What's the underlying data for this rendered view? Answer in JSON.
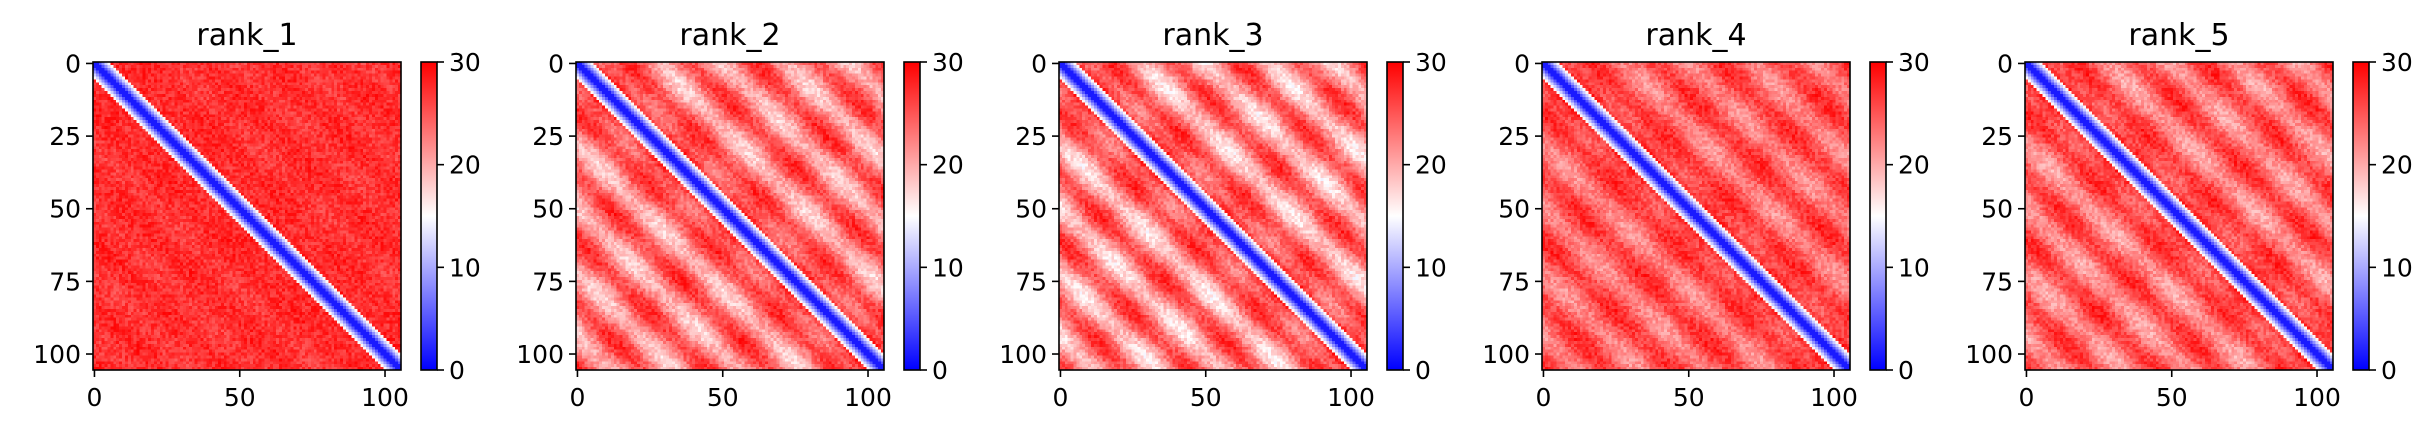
{
  "chart_data": [
    {
      "type": "heatmap",
      "title": "rank_1",
      "matrix_size": 106,
      "x_ticks": [
        0,
        50,
        100
      ],
      "y_ticks": [
        0,
        25,
        50,
        75,
        100
      ],
      "colorbar": {
        "min": 0,
        "max": 30,
        "ticks": [
          0,
          10,
          20,
          30
        ],
        "colors": [
          "#0000ff",
          "#ffffff",
          "#ff0000"
        ]
      },
      "band_strength": 0.15,
      "diagonal_width": 6
    },
    {
      "type": "heatmap",
      "title": "rank_2",
      "matrix_size": 106,
      "x_ticks": [
        0,
        50,
        100
      ],
      "y_ticks": [
        0,
        25,
        50,
        75,
        100
      ],
      "colorbar": {
        "min": 0,
        "max": 30,
        "ticks": [
          0,
          10,
          20,
          30
        ],
        "colors": [
          "#0000ff",
          "#ffffff",
          "#ff0000"
        ]
      },
      "band_strength": 0.9,
      "diagonal_width": 6
    },
    {
      "type": "heatmap",
      "title": "rank_3",
      "matrix_size": 106,
      "x_ticks": [
        0,
        50,
        100
      ],
      "y_ticks": [
        0,
        25,
        50,
        75,
        100
      ],
      "colorbar": {
        "min": 0,
        "max": 30,
        "ticks": [
          0,
          10,
          20,
          30
        ],
        "colors": [
          "#0000ff",
          "#ffffff",
          "#ff0000"
        ]
      },
      "band_strength": 1.0,
      "diagonal_width": 6
    },
    {
      "type": "heatmap",
      "title": "rank_4",
      "matrix_size": 106,
      "x_ticks": [
        0,
        50,
        100
      ],
      "y_ticks": [
        0,
        25,
        50,
        75,
        100
      ],
      "colorbar": {
        "min": 0,
        "max": 30,
        "ticks": [
          0,
          10,
          20,
          30
        ],
        "colors": [
          "#0000ff",
          "#ffffff",
          "#ff0000"
        ]
      },
      "band_strength": 0.6,
      "diagonal_width": 6
    },
    {
      "type": "heatmap",
      "title": "rank_5",
      "matrix_size": 106,
      "x_ticks": [
        0,
        50,
        100
      ],
      "y_ticks": [
        0,
        25,
        50,
        75,
        100
      ],
      "colorbar": {
        "min": 0,
        "max": 30,
        "ticks": [
          0,
          10,
          20,
          30
        ],
        "colors": [
          "#0000ff",
          "#ffffff",
          "#ff0000"
        ]
      },
      "band_strength": 0.7,
      "diagonal_width": 6
    }
  ]
}
